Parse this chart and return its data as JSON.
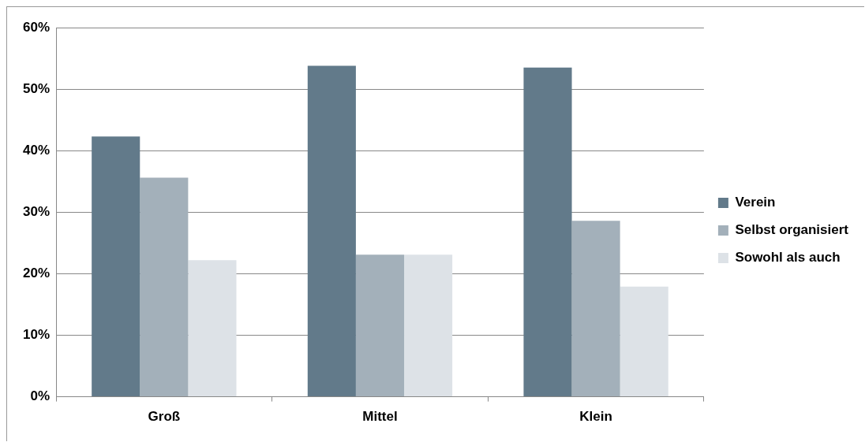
{
  "chart_data": {
    "type": "bar",
    "categories": [
      "Groß",
      "Mittel",
      "Klein"
    ],
    "series": [
      {
        "name": "Verein",
        "color": "#627a8a",
        "values": [
          42.3,
          53.8,
          53.5
        ]
      },
      {
        "name": "Selbst organisiert",
        "color": "#a3b0ba",
        "values": [
          35.6,
          23.1,
          28.6
        ]
      },
      {
        "name": "Sowohl als auch",
        "color": "#dde2e7",
        "values": [
          22.2,
          23.1,
          17.9
        ]
      }
    ],
    "ylim": [
      0,
      60
    ],
    "yticks": [
      {
        "value": 0,
        "label": "0%"
      },
      {
        "value": 10,
        "label": "10%"
      },
      {
        "value": 20,
        "label": "20%"
      },
      {
        "value": 30,
        "label": "30%"
      },
      {
        "value": 40,
        "label": "40%"
      },
      {
        "value": 50,
        "label": "50%"
      },
      {
        "value": 60,
        "label": "60%"
      }
    ],
    "grid": "y",
    "legend": "right"
  }
}
